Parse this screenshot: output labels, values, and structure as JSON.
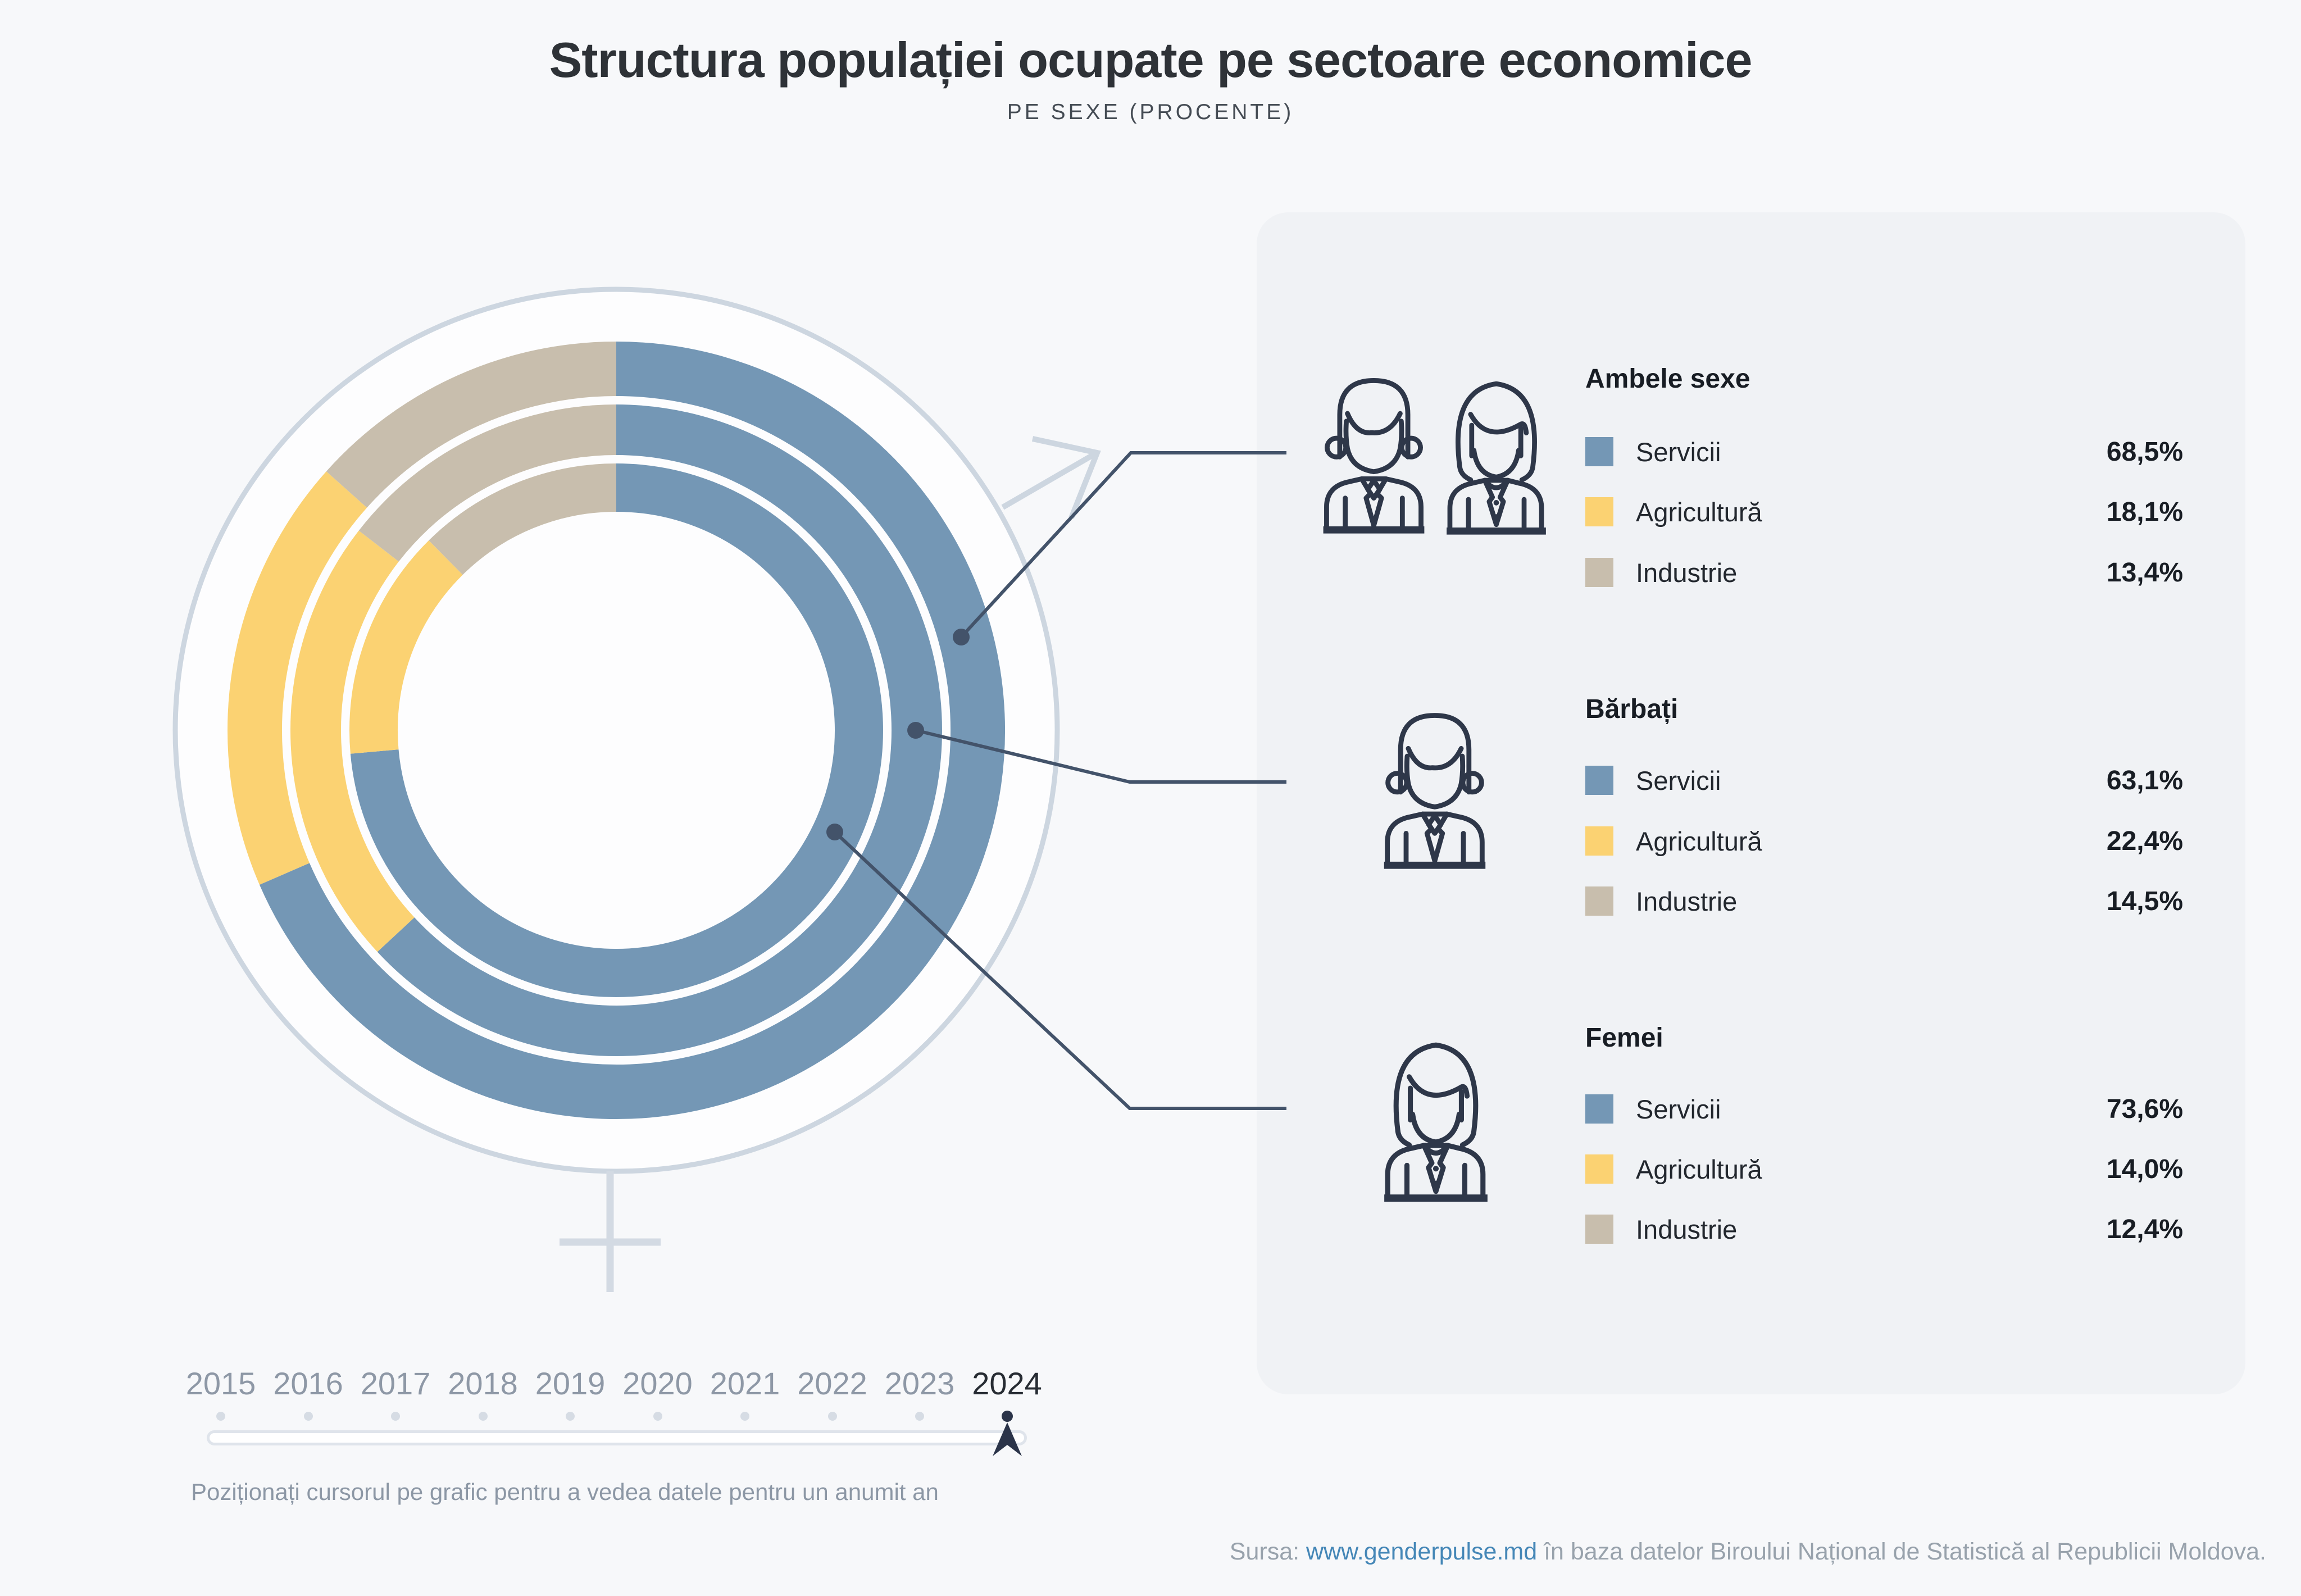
{
  "header": {
    "title": "Structura populației ocupate pe sectoare economice",
    "subtitle": "PE SEXE (PROCENTE)"
  },
  "chart_data": {
    "type": "pie",
    "variant": "concentric_donut_rings",
    "unit": "percent",
    "year": "2024",
    "start_angle": "12-oclock",
    "direction": "clockwise",
    "legend_position": "right",
    "sectors": [
      {
        "key": "servicii",
        "label": "Servicii",
        "color": "#7497B5"
      },
      {
        "key": "agricultura",
        "label": "Agricultură",
        "color": "#FBD272"
      },
      {
        "key": "industrie",
        "label": "Industrie",
        "color": "#C8BEAD"
      }
    ],
    "rings": [
      {
        "name": "Ambele sexe",
        "position": "outer",
        "values": {
          "servicii": 68.5,
          "agricultura": 18.1,
          "industrie": 13.4
        }
      },
      {
        "name": "Bărbați",
        "position": "middle",
        "values": {
          "servicii": 63.1,
          "agricultura": 22.4,
          "industrie": 14.5
        }
      },
      {
        "name": "Femei",
        "position": "inner",
        "values": {
          "servicii": 73.6,
          "agricultura": 14.0,
          "industrie": 12.4
        }
      }
    ]
  },
  "legend": {
    "groups": [
      {
        "title": "Ambele sexe",
        "icon": "man-and-woman",
        "rows": [
          {
            "label": "Servicii",
            "value": "68,5%",
            "sector": "servicii"
          },
          {
            "label": "Agricultură",
            "value": "18,1%",
            "sector": "agricultura"
          },
          {
            "label": "Industrie",
            "value": "13,4%",
            "sector": "industrie"
          }
        ]
      },
      {
        "title": "Bărbați",
        "icon": "man",
        "rows": [
          {
            "label": "Servicii",
            "value": "63,1%",
            "sector": "servicii"
          },
          {
            "label": "Agricultură",
            "value": "22,4%",
            "sector": "agricultura"
          },
          {
            "label": "Industrie",
            "value": "14,5%",
            "sector": "industrie"
          }
        ]
      },
      {
        "title": "Femei",
        "icon": "woman",
        "rows": [
          {
            "label": "Servicii",
            "value": "73,6%",
            "sector": "servicii"
          },
          {
            "label": "Agricultură",
            "value": "14,0%",
            "sector": "agricultura"
          },
          {
            "label": "Industrie",
            "value": "12,4%",
            "sector": "industrie"
          }
        ]
      }
    ]
  },
  "slider": {
    "years": [
      "2015",
      "2016",
      "2017",
      "2018",
      "2019",
      "2020",
      "2021",
      "2022",
      "2023",
      "2024"
    ],
    "selected": "2024",
    "hint": "Poziționați cursorul pe grafic pentru a vedea datele pentru un anumit an"
  },
  "source": {
    "prefix": "Sursa: ",
    "link": "www.genderpulse.md",
    "suffix": " în baza datelor Biroului Național de Statistică al Republicii Moldova."
  },
  "colors": {
    "background": "#F7F8FA",
    "panel": "#F0F2F5",
    "callout": "#43536A",
    "gender_symbol": "#CDD6E0",
    "circle_fill": "#FDFDFE",
    "text_dark": "#181D24",
    "text_muted": "#8C97A5",
    "link": "#4587B7"
  }
}
